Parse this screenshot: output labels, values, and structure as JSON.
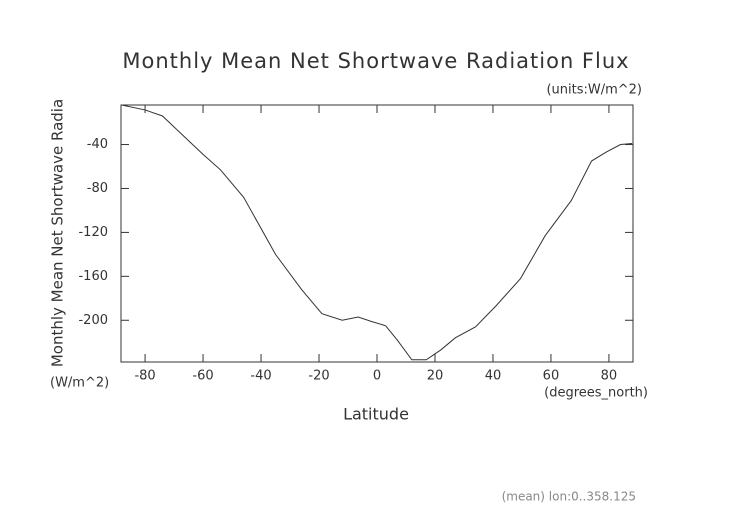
{
  "chart_data": {
    "type": "line",
    "title": "Monthly Mean Net Shortwave Radiation Flux",
    "units_label": "(units:W/m^2)",
    "y_label": "Monthly Mean Net Shortwave Radia",
    "y_units": "(W/m^2)",
    "x_label": "Latitude",
    "x_units": "(degrees_north)",
    "footnote": "(mean) lon:0..358.125",
    "x": [
      -88,
      -80,
      -74,
      -60,
      -54,
      -46,
      -35,
      -26,
      -19,
      -12,
      -6.5,
      -2,
      3,
      7,
      12,
      17,
      22,
      27,
      34,
      41,
      49.5,
      58,
      67,
      74,
      79,
      84,
      88
    ],
    "series": [
      {
        "color": "#333333",
        "values": [
          -4,
          -8.5,
          -14,
          -49,
          -63,
          -88,
          -140,
          -172,
          -194,
          -200,
          -197,
          -201,
          -205,
          -218,
          -236,
          -236,
          -227,
          -216,
          -206,
          -187,
          -162,
          -123,
          -91,
          -55,
          -47,
          -40,
          -39
        ]
      }
    ],
    "xlim": [
      -88.3,
      88.3
    ],
    "ylim": [
      -238,
      -4
    ],
    "xticks": [
      -80,
      -60,
      -40,
      -20,
      0,
      20,
      40,
      60,
      80
    ],
    "yticks": [
      -40,
      -80,
      -120,
      -160,
      -200
    ]
  }
}
